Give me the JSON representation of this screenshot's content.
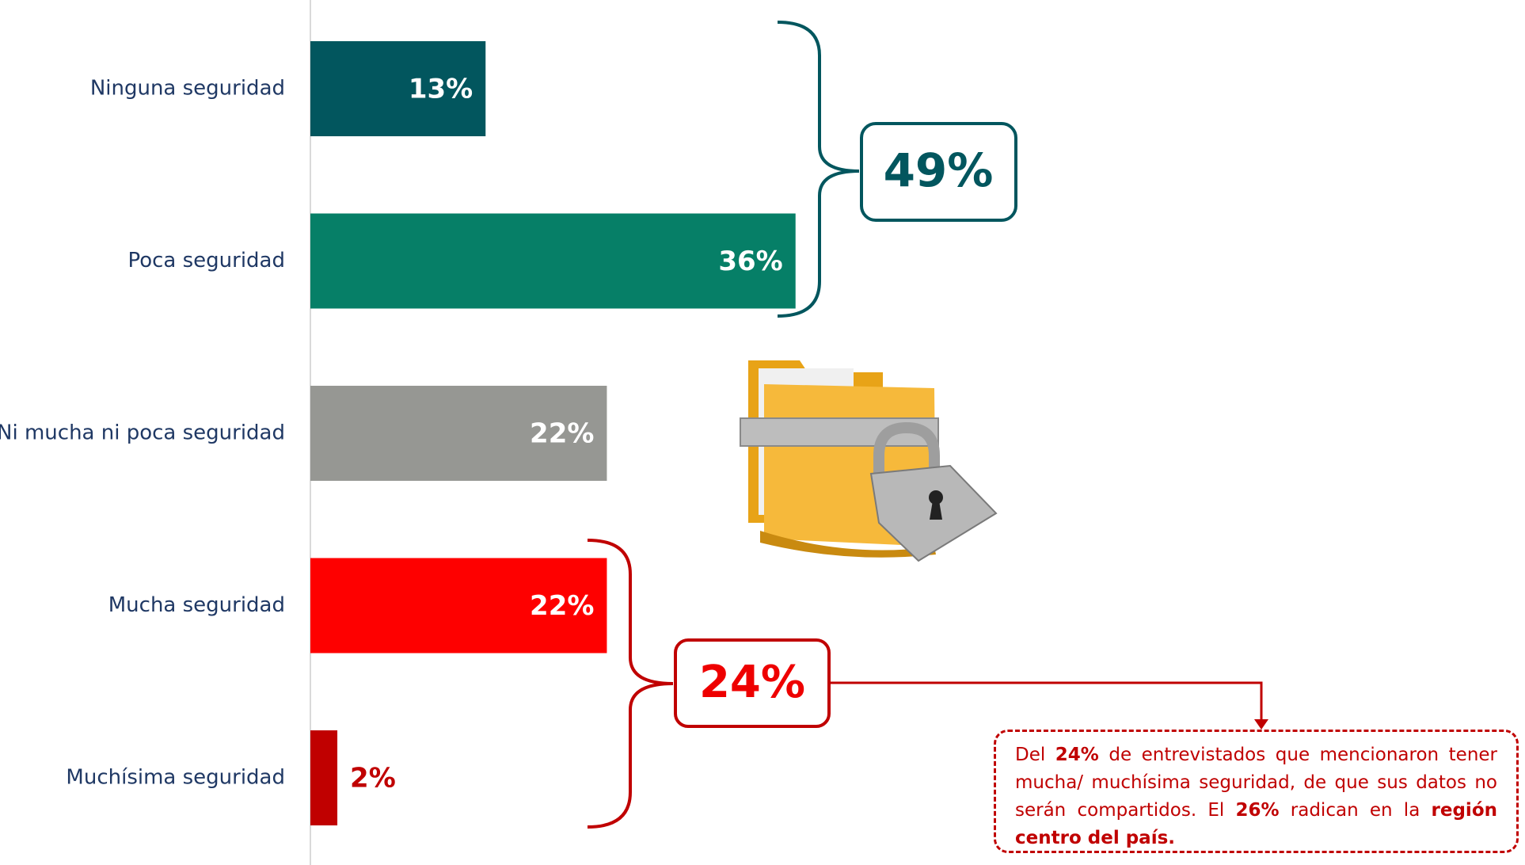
{
  "chart_data": {
    "type": "bar",
    "orientation": "horizontal",
    "categories": [
      "Ninguna seguridad",
      "Poca seguridad",
      "Ni mucha ni poca seguridad",
      "Mucha seguridad",
      "Muchísima seguridad"
    ],
    "values": [
      13,
      36,
      22,
      22,
      2
    ],
    "value_labels": [
      "13%",
      "36%",
      "22%",
      "22%",
      "2%"
    ],
    "colors": [
      "#02565e",
      "#067f67",
      "#969793",
      "#fe0000",
      "#c00000"
    ],
    "annotations": [
      "49%",
      "24%"
    ],
    "note": [
      {
        "text": "Del ",
        "bold": false
      },
      {
        "text": "24%",
        "bold": true
      },
      {
        "text": " de entrevistados que mencionaron tener mucha/ muchísima seguridad, de que sus datos no serán compartidos. El ",
        "bold": false
      },
      {
        "text": "26%",
        "bold": true
      },
      {
        "text": " radican en la ",
        "bold": false
      },
      {
        "text": "región centro del país.",
        "bold": true
      }
    ]
  }
}
